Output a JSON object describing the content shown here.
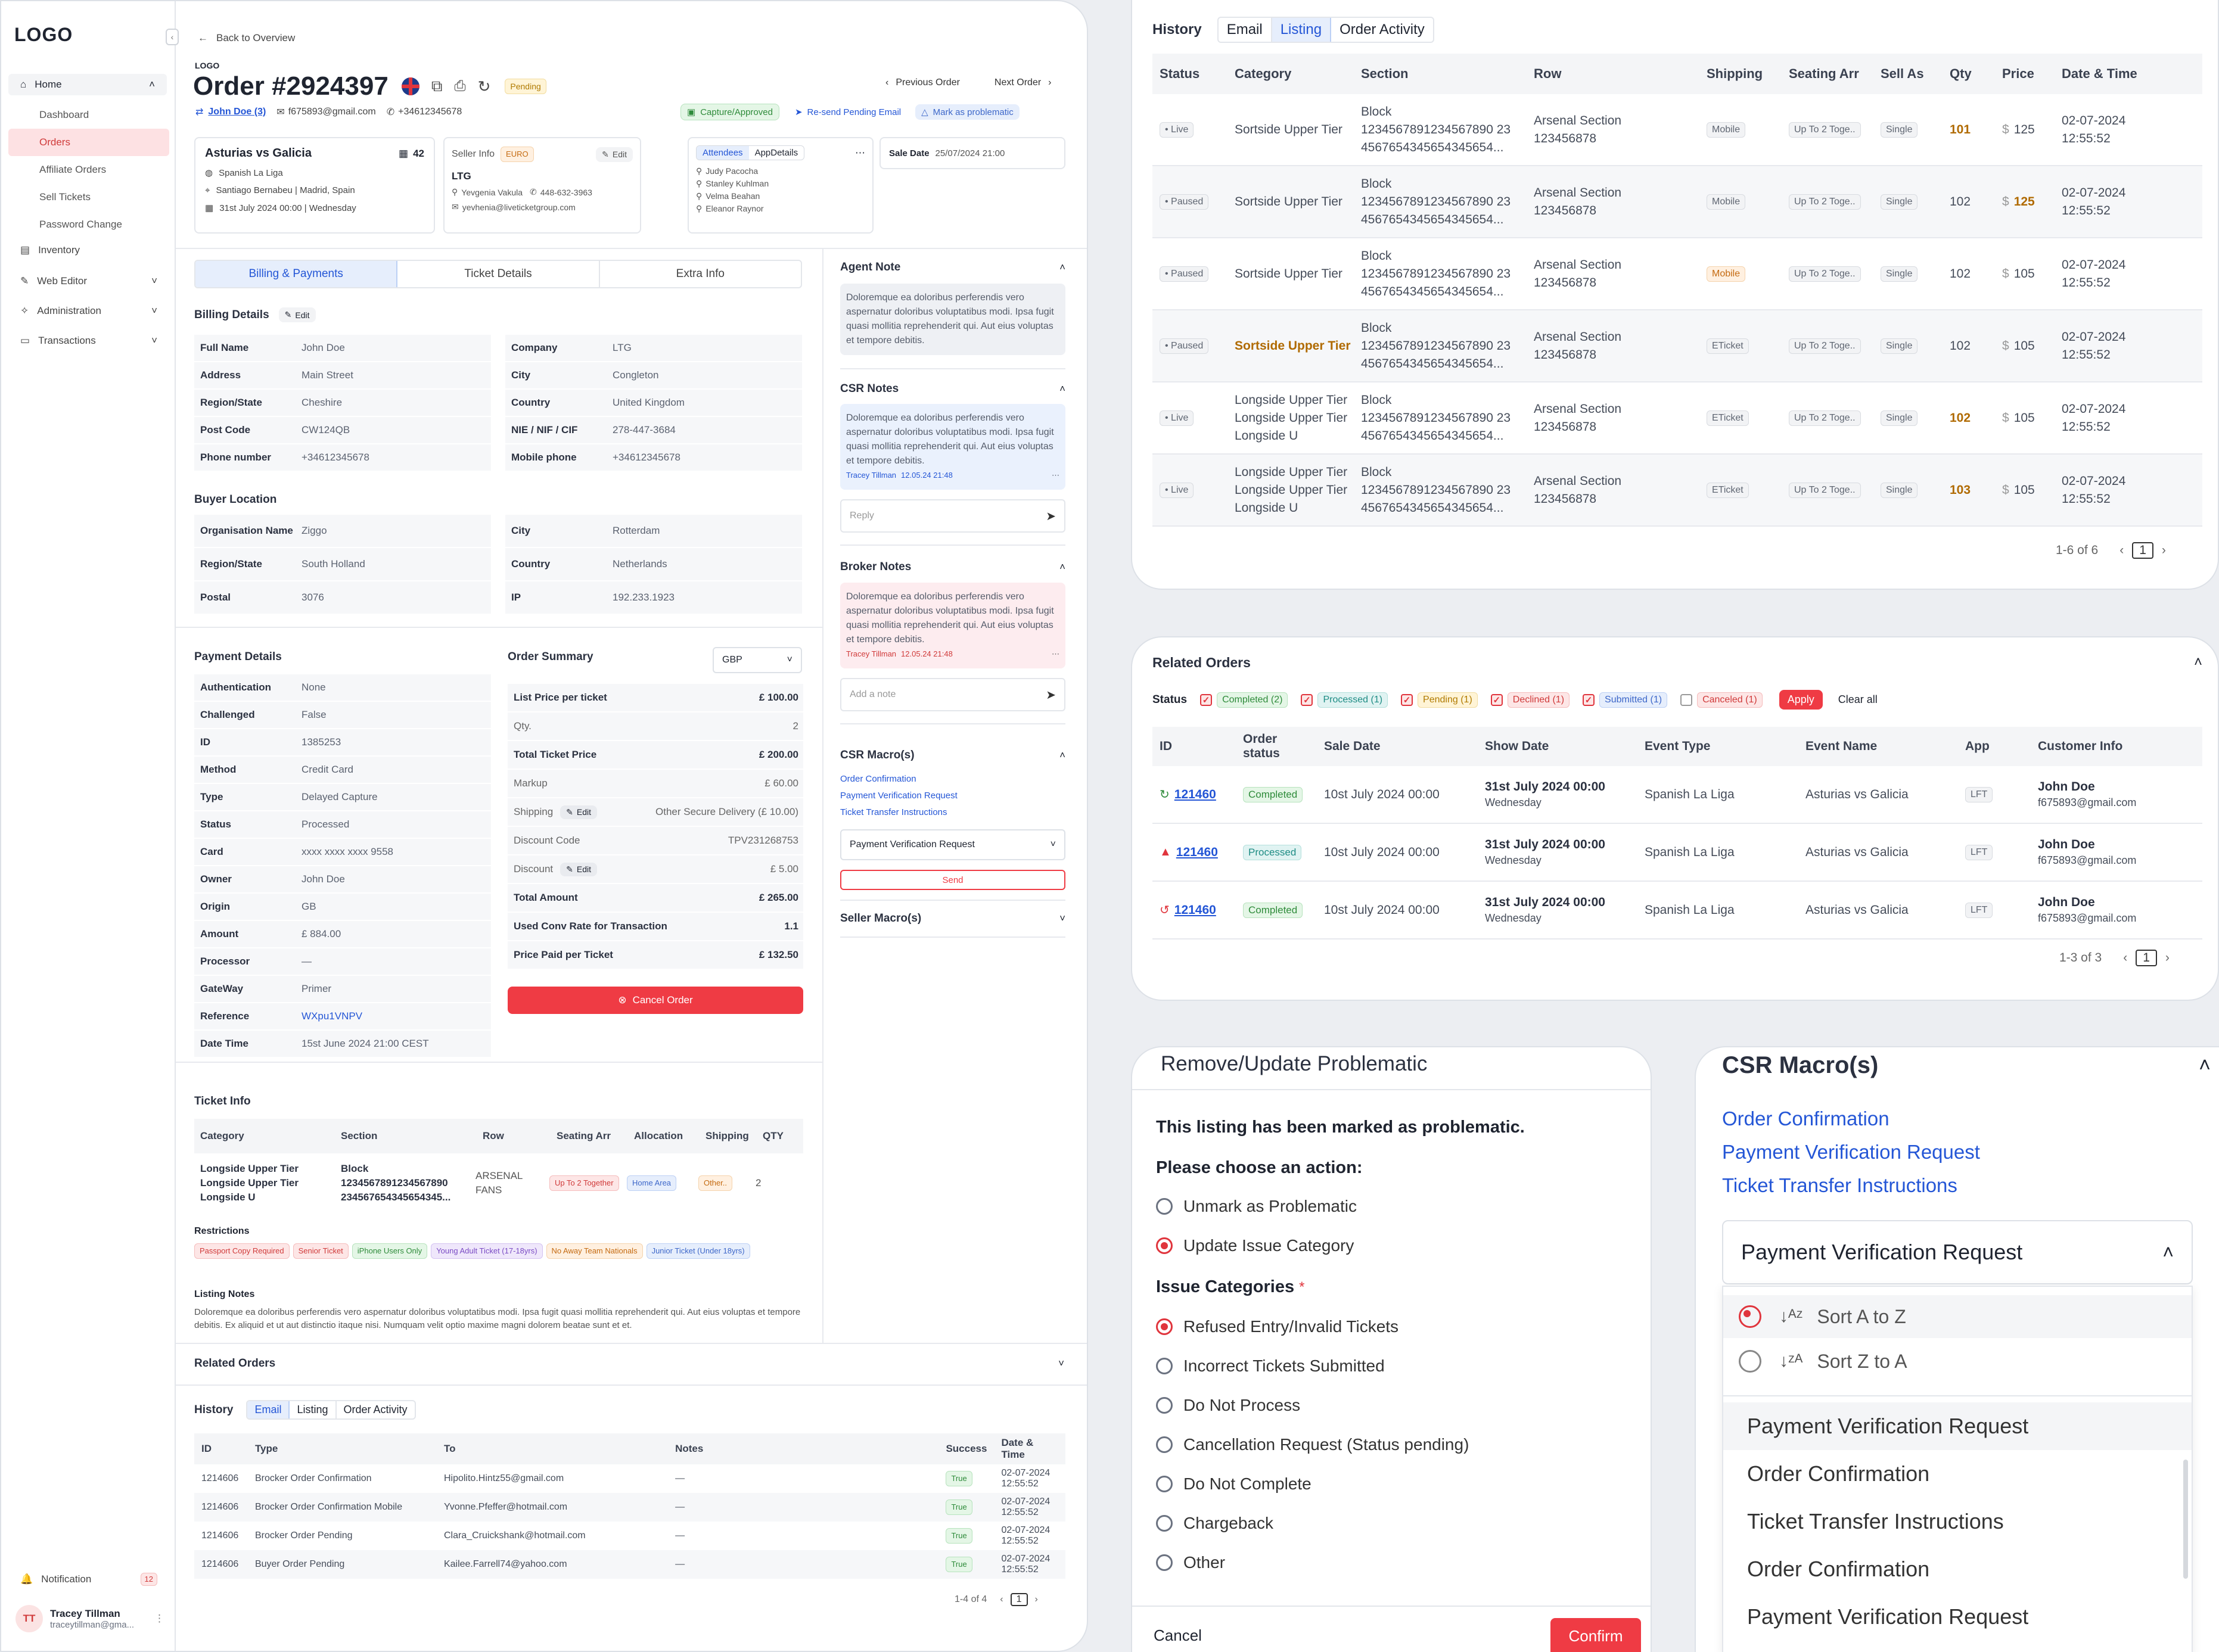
{
  "sidebar": {
    "logo": "LOGO",
    "home": "Home",
    "items": [
      "Dashboard",
      "Orders",
      "Affiliate Orders",
      "Sell Tickets",
      "Password Change"
    ],
    "inventory": "Inventory",
    "web_editor": "Web Editor",
    "administration": "Administration",
    "transactions": "Transactions",
    "notification": "Notification",
    "notif_count": "12",
    "user_initials": "TT",
    "user_name": "Tracey Tillman",
    "user_email": "traceytillman@gma..."
  },
  "order": {
    "back": "Back to Overview",
    "logo_small": "LOGO",
    "title": "Order #2924397",
    "status": "Pending",
    "prev": "Previous Order",
    "next": "Next Order",
    "customer": "John Doe (3)",
    "email": "f675893@gmail.com",
    "phone": "+34612345678",
    "btn_capture": "Capture/Approved",
    "btn_resend": "Re-send Pending Email",
    "btn_problem": "Mark as problematic"
  },
  "event": {
    "name": "Asturias vs Galicia",
    "count": "42",
    "league": "Spanish La Liga",
    "venue": "Santiago Bernabeu | Madrid, Spain",
    "date": "31st July 2024 00:00 | Wednesday"
  },
  "seller": {
    "label": "Seller Info",
    "currency": "EURO",
    "edit": "Edit",
    "name": "LTG",
    "person": "Yevgenia Vakula",
    "phone": "448-632-3963",
    "email": "yevhenia@liveticketgroup.com"
  },
  "attendees": {
    "tab1": "Attendees",
    "tab2": "AppDetails",
    "list": [
      "Judy Pacocha",
      "Stanley Kuhlman",
      "Velma Beahan",
      "Eleanor Raynor"
    ]
  },
  "sale": {
    "label": "Sale Date",
    "value": "25/07/2024 21:00"
  },
  "tabs": [
    "Billing & Payments",
    "Ticket Details",
    "Extra Info"
  ],
  "billing": {
    "title": "Billing Details",
    "edit": "Edit",
    "left": [
      [
        "Full Name",
        "John Doe"
      ],
      [
        "Address",
        "Main Street"
      ],
      [
        "Region/State",
        "Cheshire"
      ],
      [
        "Post Code",
        "CW124QB"
      ],
      [
        "Phone number",
        "+34612345678"
      ]
    ],
    "right": [
      [
        "Company",
        "LTG"
      ],
      [
        "City",
        "Congleton"
      ],
      [
        "Country",
        "United Kingdom"
      ],
      [
        "NIE / NIF / CIF",
        "278-447-3684"
      ],
      [
        "Mobile phone",
        "+34612345678"
      ]
    ]
  },
  "buyer": {
    "title": "Buyer Location",
    "left": [
      [
        "Organisation Name",
        "Ziggo"
      ],
      [
        "Region/State",
        "South Holland"
      ],
      [
        "Postal",
        "3076"
      ]
    ],
    "right": [
      [
        "City",
        "Rotterdam"
      ],
      [
        "Country",
        "Netherlands"
      ],
      [
        "IP",
        "192.233.1923"
      ]
    ]
  },
  "payment": {
    "title": "Payment Details",
    "rows": [
      [
        "Authentication",
        "None"
      ],
      [
        "Challenged",
        "False"
      ],
      [
        "ID",
        "1385253"
      ],
      [
        "Method",
        "Credit Card"
      ],
      [
        "Type",
        "Delayed Capture"
      ],
      [
        "Status",
        "Processed"
      ],
      [
        "Card",
        "xxxx xxxx xxxx 9558"
      ],
      [
        "Owner",
        "John Doe"
      ],
      [
        "Origin",
        "GB"
      ],
      [
        "Amount",
        "£ 884.00"
      ],
      [
        "Processor",
        "—"
      ],
      [
        "GateWay",
        "Primer"
      ],
      [
        "Reference",
        "WXpu1VNPV"
      ],
      [
        "Date Time",
        "15st June 2024 21:00 CEST"
      ]
    ]
  },
  "summary": {
    "title": "Order Summary",
    "currency": "GBP",
    "rows": [
      [
        "List Price per ticket",
        "£ 100.00",
        "b"
      ],
      [
        "Qty.",
        "2",
        ""
      ],
      [
        "Total Ticket Price",
        "£ 200.00",
        "b"
      ],
      [
        "Markup",
        "£ 60.00",
        ""
      ],
      [
        "Shipping",
        "Other Secure Delivery (£ 10.00)",
        "e"
      ],
      [
        "Discount Code",
        "TPV231268753",
        ""
      ],
      [
        "Discount",
        "£ 5.00",
        "e"
      ],
      [
        "Total Amount",
        "£ 265.00",
        "b"
      ],
      [
        "Used Conv Rate for Transaction",
        "1.1",
        "b"
      ],
      [
        "Price Paid per Ticket",
        "£ 132.50",
        "b"
      ]
    ],
    "cancel": "Cancel Order"
  },
  "ticket_info": {
    "title": "Ticket Info",
    "headers": [
      "Category",
      "Section",
      "Row",
      "Seating Arr",
      "Allocation",
      "Shipping",
      "QTY"
    ],
    "category": [
      "Longside Upper Tier",
      "Longside Upper Tier",
      "Longside U"
    ],
    "section": [
      "Block",
      "1234567891234567890",
      "234567654345654345..."
    ],
    "row": [
      "ARSENAL",
      "FANS"
    ],
    "seating": "Up To 2 Together",
    "allocation": "Home Area",
    "shipping": "Other..",
    "qty": "2",
    "restrictions_title": "Restrictions",
    "restrictions": [
      "Passport Copy Required",
      "Senior Ticket",
      "iPhone Users Only",
      "Young Adult Ticket (17-18yrs)",
      "No Away Team Nationals",
      "Junior Ticket (Under 18yrs)"
    ],
    "notes_title": "Listing Notes",
    "notes": "Doloremque ea doloribus perferendis vero aspernatur doloribus voluptatibus modi. Ipsa fugit quasi mollitia reprehenderit qui. Aut eius voluptas et tempore debitis. Ex aliquid et ut aut distinctio itaque nisi. Numquam velit optio maxime magni dolorem beatae sunt et et."
  },
  "related_collapsed": "Related Orders",
  "history_small": {
    "title": "History",
    "tabs": [
      "Email",
      "Listing",
      "Order Activity"
    ],
    "headers": [
      "ID",
      "Type",
      "To",
      "Notes",
      "Success",
      "Date & Time"
    ],
    "rows": [
      [
        "1214606",
        "Brocker Order Confirmation",
        "Hipolito.Hintz55@gmail.com",
        "—",
        "True",
        "02-07-2024 12:55:52"
      ],
      [
        "1214606",
        "Brocker Order Confirmation Mobile",
        "Yvonne.Pfeffer@hotmail.com",
        "—",
        "True",
        "02-07-2024 12:55:52"
      ],
      [
        "1214606",
        "Brocker Order Pending",
        "Clara_Cruickshank@hotmail.com",
        "—",
        "True",
        "02-07-2024 12:55:52"
      ],
      [
        "1214606",
        "Buyer Order Pending",
        "Kailee.Farrell74@yahoo.com",
        "—",
        "True",
        "02-07-2024 12:55:52"
      ]
    ],
    "pager": "1-4 of 4",
    "page": "1"
  },
  "notes": {
    "agent_title": "Agent Note",
    "lorem": "Doloremque ea doloribus perferendis vero aspernatur doloribus voluptatibus modi. Ipsa fugit quasi mollitia reprehenderit qui. Aut eius voluptas et tempore debitis.",
    "csr_title": "CSR Notes",
    "author": "Tracey Tillman",
    "stamp": "12.05.24 21:48",
    "reply": "Reply",
    "broker_title": "Broker Notes",
    "add_note": "Add a note",
    "macro_title": "CSR Macro(s)",
    "macros": [
      "Order Confirmation",
      "Payment Verification Request",
      "Ticket Transfer Instructions"
    ],
    "macro_selected": "Payment Verification Request",
    "send": "Send",
    "seller_macro": "Seller Macro(s)"
  },
  "listing": {
    "title": "History",
    "tabs": [
      "Email",
      "Listing",
      "Order Activity"
    ],
    "headers": [
      "Status",
      "Category",
      "Section",
      "Row",
      "Shipping",
      "Seating Arr",
      "Sell As",
      "Qty",
      "Price",
      "Date & Time"
    ],
    "rows": [
      {
        "status": "Live",
        "cat": [
          "Sortside Upper Tier"
        ],
        "catHi": false,
        "ship": "Mobile",
        "shipHi": false,
        "qty": "101",
        "qtyHi": true,
        "price": "125",
        "priceHi": false
      },
      {
        "status": "Paused",
        "cat": [
          "Sortside Upper Tier"
        ],
        "catHi": false,
        "ship": "Mobile",
        "shipHi": false,
        "qty": "102",
        "qtyHi": false,
        "price": "125",
        "priceHi": true
      },
      {
        "status": "Paused",
        "cat": [
          "Sortside Upper Tier"
        ],
        "catHi": false,
        "ship": "Mobile",
        "shipHi": true,
        "qty": "102",
        "qtyHi": false,
        "price": "105",
        "priceHi": false
      },
      {
        "status": "Paused",
        "cat": [
          "Sortside Upper Tier"
        ],
        "catHi": true,
        "ship": "ETicket",
        "shipHi": false,
        "qty": "102",
        "qtyHi": false,
        "price": "105",
        "priceHi": false
      },
      {
        "status": "Live",
        "cat": [
          "Longside Upper Tier",
          "Longside Upper Tier",
          "Longside U"
        ],
        "catHi": false,
        "ship": "ETicket",
        "shipHi": false,
        "qty": "102",
        "qtyHi": true,
        "price": "105",
        "priceHi": false
      },
      {
        "status": "Live",
        "cat": [
          "Longside Upper Tier",
          "Longside Upper Tier",
          "Longside U"
        ],
        "catHi": false,
        "ship": "ETicket",
        "shipHi": false,
        "qty": "103",
        "qtyHi": true,
        "price": "105",
        "priceHi": false
      }
    ],
    "section": [
      "Block",
      "1234567891234567890 23",
      "4567654345654345654..."
    ],
    "row": [
      "Arsenal Section",
      "123456878"
    ],
    "seating": "Up To 2 Toge..",
    "sellas": "Single",
    "currency": "$",
    "date": [
      "02-07-2024",
      "12:55:52"
    ],
    "pager": "1-6 of 6",
    "page": "1"
  },
  "related": {
    "title": "Related Orders",
    "status_label": "Status",
    "filters": [
      [
        "Completed (2)",
        "t-green",
        true
      ],
      [
        "Processed (1)",
        "t-teal",
        true
      ],
      [
        "Pending (1)",
        "t-yellow",
        true
      ],
      [
        "Declined (1)",
        "t-red",
        true
      ],
      [
        "Submitted (1)",
        "t-blue",
        true
      ],
      [
        "Canceled (1)",
        "t-red",
        false
      ]
    ],
    "apply": "Apply",
    "clear": "Clear all",
    "headers": [
      "ID",
      "Order status",
      "Sale Date",
      "Show Date",
      "Event Type",
      "Event Name",
      "App",
      "Customer Info"
    ],
    "rows": [
      {
        "id": "121460",
        "icon": "↻",
        "iconColor": "#2e8b3a",
        "status": "Completed",
        "cls": "t-green"
      },
      {
        "id": "121460",
        "icon": "▲",
        "iconColor": "#e0353d",
        "status": "Processed",
        "cls": "t-teal"
      },
      {
        "id": "121460",
        "icon": "↺",
        "iconColor": "#e0353d",
        "status": "Completed",
        "cls": "t-green"
      }
    ],
    "sale": "10st July 2024 00:00",
    "show": "31st July 2024 00:00",
    "day": "Wednesday",
    "etype": "Spanish La Liga",
    "ename": "Asturias vs Galicia",
    "app": "LFT",
    "cname": "John Doe",
    "cemail": "f675893@gmail.com",
    "pager": "1-3 of 3",
    "page": "1"
  },
  "problematic": {
    "title": "Remove/Update Problematic",
    "lead": "This listing has been marked as problematic.",
    "choose": "Please choose an action:",
    "actions": [
      "Unmark as Problematic",
      "Update Issue Category"
    ],
    "cat_title": "Issue Categories",
    "required": "*",
    "categories": [
      "Refused Entry/Invalid Tickets",
      "Incorrect Tickets Submitted",
      "Do Not Process",
      "Cancellation Request (Status pending)",
      "Do Not Complete",
      "Chargeback",
      "Other"
    ],
    "cancel": "Cancel",
    "confirm": "Confirm"
  },
  "macro_zoom": {
    "title": "CSR Macro(s)",
    "links": [
      "Order Confirmation",
      "Payment Verification Request",
      "Ticket Transfer Instructions"
    ],
    "selected": "Payment Verification Request",
    "sort_az": "Sort A to Z",
    "sort_za": "Sort Z to A",
    "options": [
      "Payment Verification Request",
      "Order Confirmation",
      "Ticket Transfer Instructions",
      "Order Confirmation",
      "Payment Verification Request"
    ]
  }
}
